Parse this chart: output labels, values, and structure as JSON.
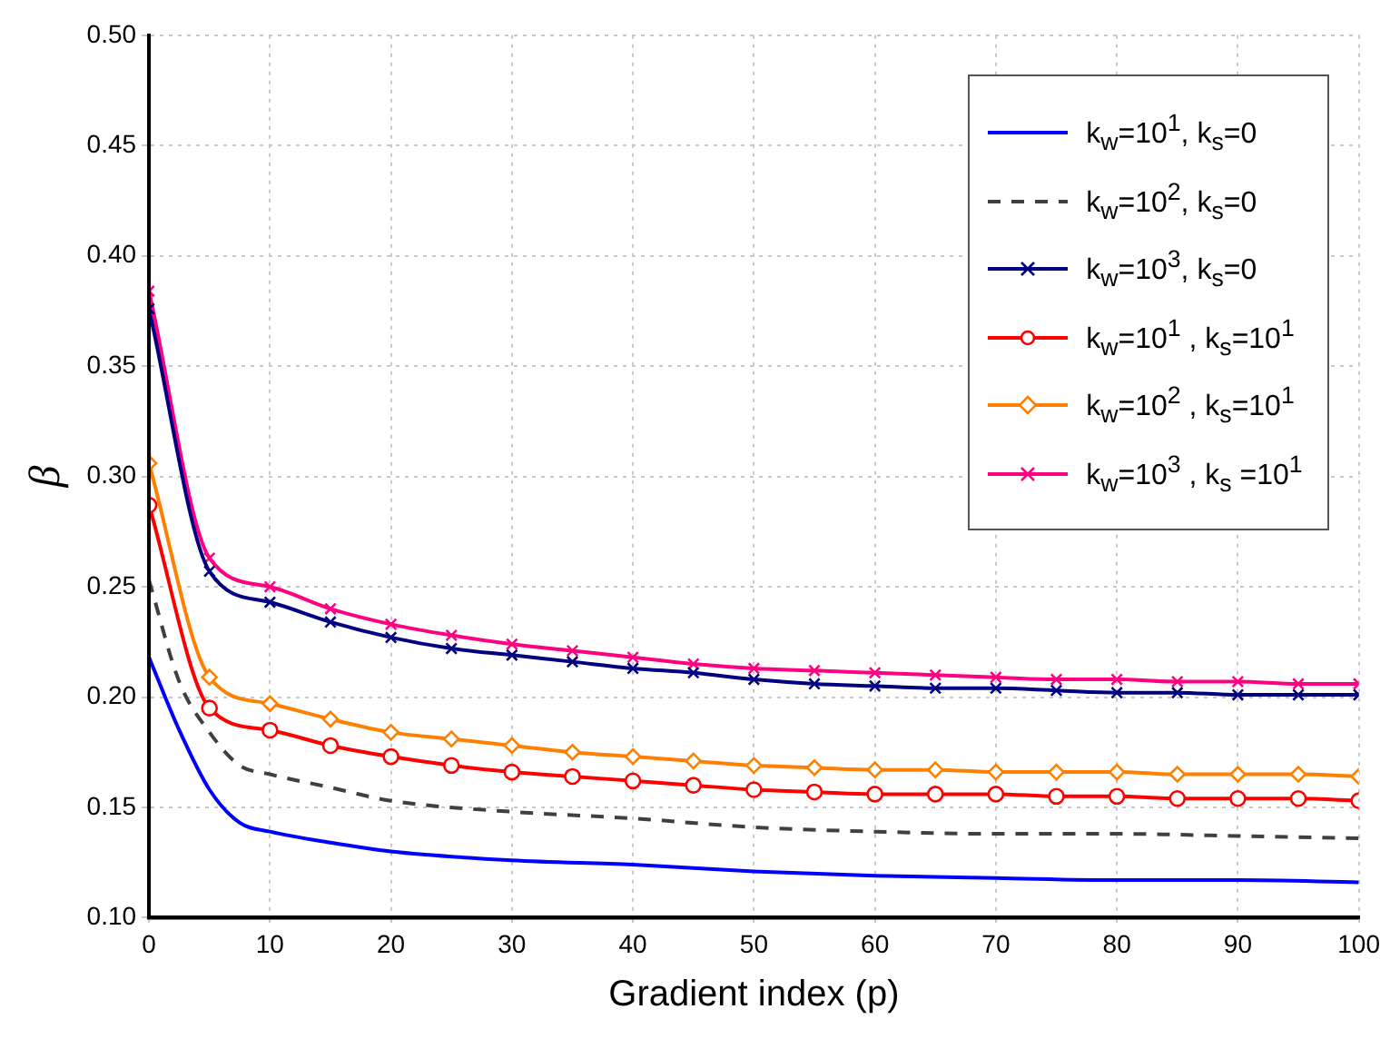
{
  "chart_data": {
    "type": "line",
    "xlabel": "Gradient index (p)",
    "ylabel": "β",
    "xlim": [
      0,
      100
    ],
    "xticks": [
      0,
      10,
      20,
      30,
      40,
      50,
      60,
      70,
      80,
      90,
      100
    ],
    "ylim": [
      0.1,
      0.5
    ],
    "yticks": [
      {
        "value": 0.1,
        "label": "0.10"
      },
      {
        "value": 0.15,
        "label": "0.15"
      },
      {
        "value": 0.2,
        "label": "0.20"
      },
      {
        "value": 0.25,
        "label": "0.25"
      },
      {
        "value": 0.3,
        "label": "0.30"
      },
      {
        "value": 0.35,
        "label": "0.35"
      },
      {
        "value": 0.4,
        "label": "0.40"
      },
      {
        "value": 0.45,
        "label": "0.45"
      },
      {
        "value": 0.5,
        "label": "0.50"
      }
    ],
    "grid": true,
    "legend": "top right",
    "x": [
      0,
      5,
      10,
      15,
      20,
      25,
      30,
      35,
      40,
      45,
      50,
      55,
      60,
      65,
      70,
      75,
      80,
      85,
      90,
      95,
      100
    ],
    "series": [
      {
        "name": "k$_{w}$=10$^{1}$, k$_{s}$=0",
        "color": "#0000ff",
        "marker": "none",
        "line_style": "solid",
        "x": [
          0,
          2.5,
          5,
          7.5,
          10,
          15,
          20,
          30,
          40,
          50,
          60,
          70,
          80,
          90,
          100
        ],
        "values": [
          0.218,
          0.185,
          0.158,
          0.143,
          0.139,
          0.134,
          0.13,
          0.126,
          0.124,
          0.121,
          0.119,
          0.118,
          0.117,
          0.117,
          0.116
        ]
      },
      {
        "name": "k$_{w}$=10$^{2}$, k$_{s}$=0",
        "color": "#404040",
        "marker": "none",
        "line_style": "dashed",
        "x": [
          0,
          2.5,
          5,
          7.5,
          10,
          15,
          20,
          30,
          40,
          50,
          60,
          70,
          80,
          90,
          100
        ],
        "values": [
          0.253,
          0.207,
          0.184,
          0.169,
          0.165,
          0.159,
          0.153,
          0.148,
          0.145,
          0.141,
          0.139,
          0.138,
          0.138,
          0.137,
          0.136
        ]
      },
      {
        "name": "k$_{w}$=10$^{3}$, k$_{s}$=0",
        "color": "#000080",
        "marker": "cross",
        "line_style": "solid",
        "values": [
          0.376,
          0.257,
          0.243,
          0.234,
          0.227,
          0.222,
          0.219,
          0.216,
          0.213,
          0.211,
          0.208,
          0.206,
          0.205,
          0.204,
          0.204,
          0.203,
          0.202,
          0.202,
          0.201,
          0.201,
          0.201
        ]
      },
      {
        "name": "k$_{w}$=10$^{1}$ , k$_{s}$=10$^{1}$",
        "color": "#ff0000",
        "marker": "circle",
        "line_style": "solid",
        "values": [
          0.287,
          0.195,
          0.185,
          0.178,
          0.173,
          0.169,
          0.166,
          0.164,
          0.162,
          0.16,
          0.158,
          0.157,
          0.156,
          0.156,
          0.156,
          0.155,
          0.155,
          0.154,
          0.154,
          0.154,
          0.153
        ]
      },
      {
        "name": "k$_{w}$=10$^{2}$ , k$_{s}$=10$^{1}$",
        "color": "#ff8000",
        "marker": "diamond",
        "line_style": "solid",
        "values": [
          0.306,
          0.209,
          0.197,
          0.19,
          0.184,
          0.181,
          0.178,
          0.175,
          0.173,
          0.171,
          0.169,
          0.168,
          0.167,
          0.167,
          0.166,
          0.166,
          0.166,
          0.165,
          0.165,
          0.165,
          0.164
        ]
      },
      {
        "name": "k$_{w}$=10$^{3}$ , k$_{s}$ =10$^{1}$",
        "color": "#ff0080",
        "marker": "cross",
        "line_style": "solid",
        "values": [
          0.384,
          0.263,
          0.25,
          0.24,
          0.233,
          0.228,
          0.224,
          0.221,
          0.218,
          0.215,
          0.213,
          0.212,
          0.211,
          0.21,
          0.209,
          0.208,
          0.208,
          0.207,
          0.207,
          0.206,
          0.206
        ]
      }
    ]
  }
}
